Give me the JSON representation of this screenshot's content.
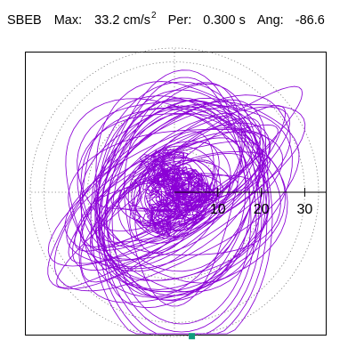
{
  "header": {
    "station": "SBEB",
    "max_label": "Max:",
    "max_value": "33.2",
    "max_unit": "cm/s",
    "max_unit_exp": "2",
    "per_label": "Per:",
    "per_value": "0.300 s",
    "ang_label": "Ang:",
    "ang_value": "-86.6"
  },
  "colors": {
    "trace": "#8b00d6",
    "grid": "#7a7a7a",
    "marker": "#109c7c",
    "axes": "#000000"
  },
  "chart_data": {
    "type": "polar-trace",
    "radial_ticks": [
      10,
      20,
      30
    ],
    "radial_tick_labels": [
      "10",
      "20",
      "30"
    ],
    "r_max": 33.2,
    "grid": true,
    "grid_style": "dotted",
    "max_amplitude": 33.2,
    "max_amplitude_unit": "cm/s2",
    "period_s": 0.3,
    "angle_deg": -86.6,
    "marker_angle_deg": -86.6,
    "marker_radius": 33.2
  }
}
